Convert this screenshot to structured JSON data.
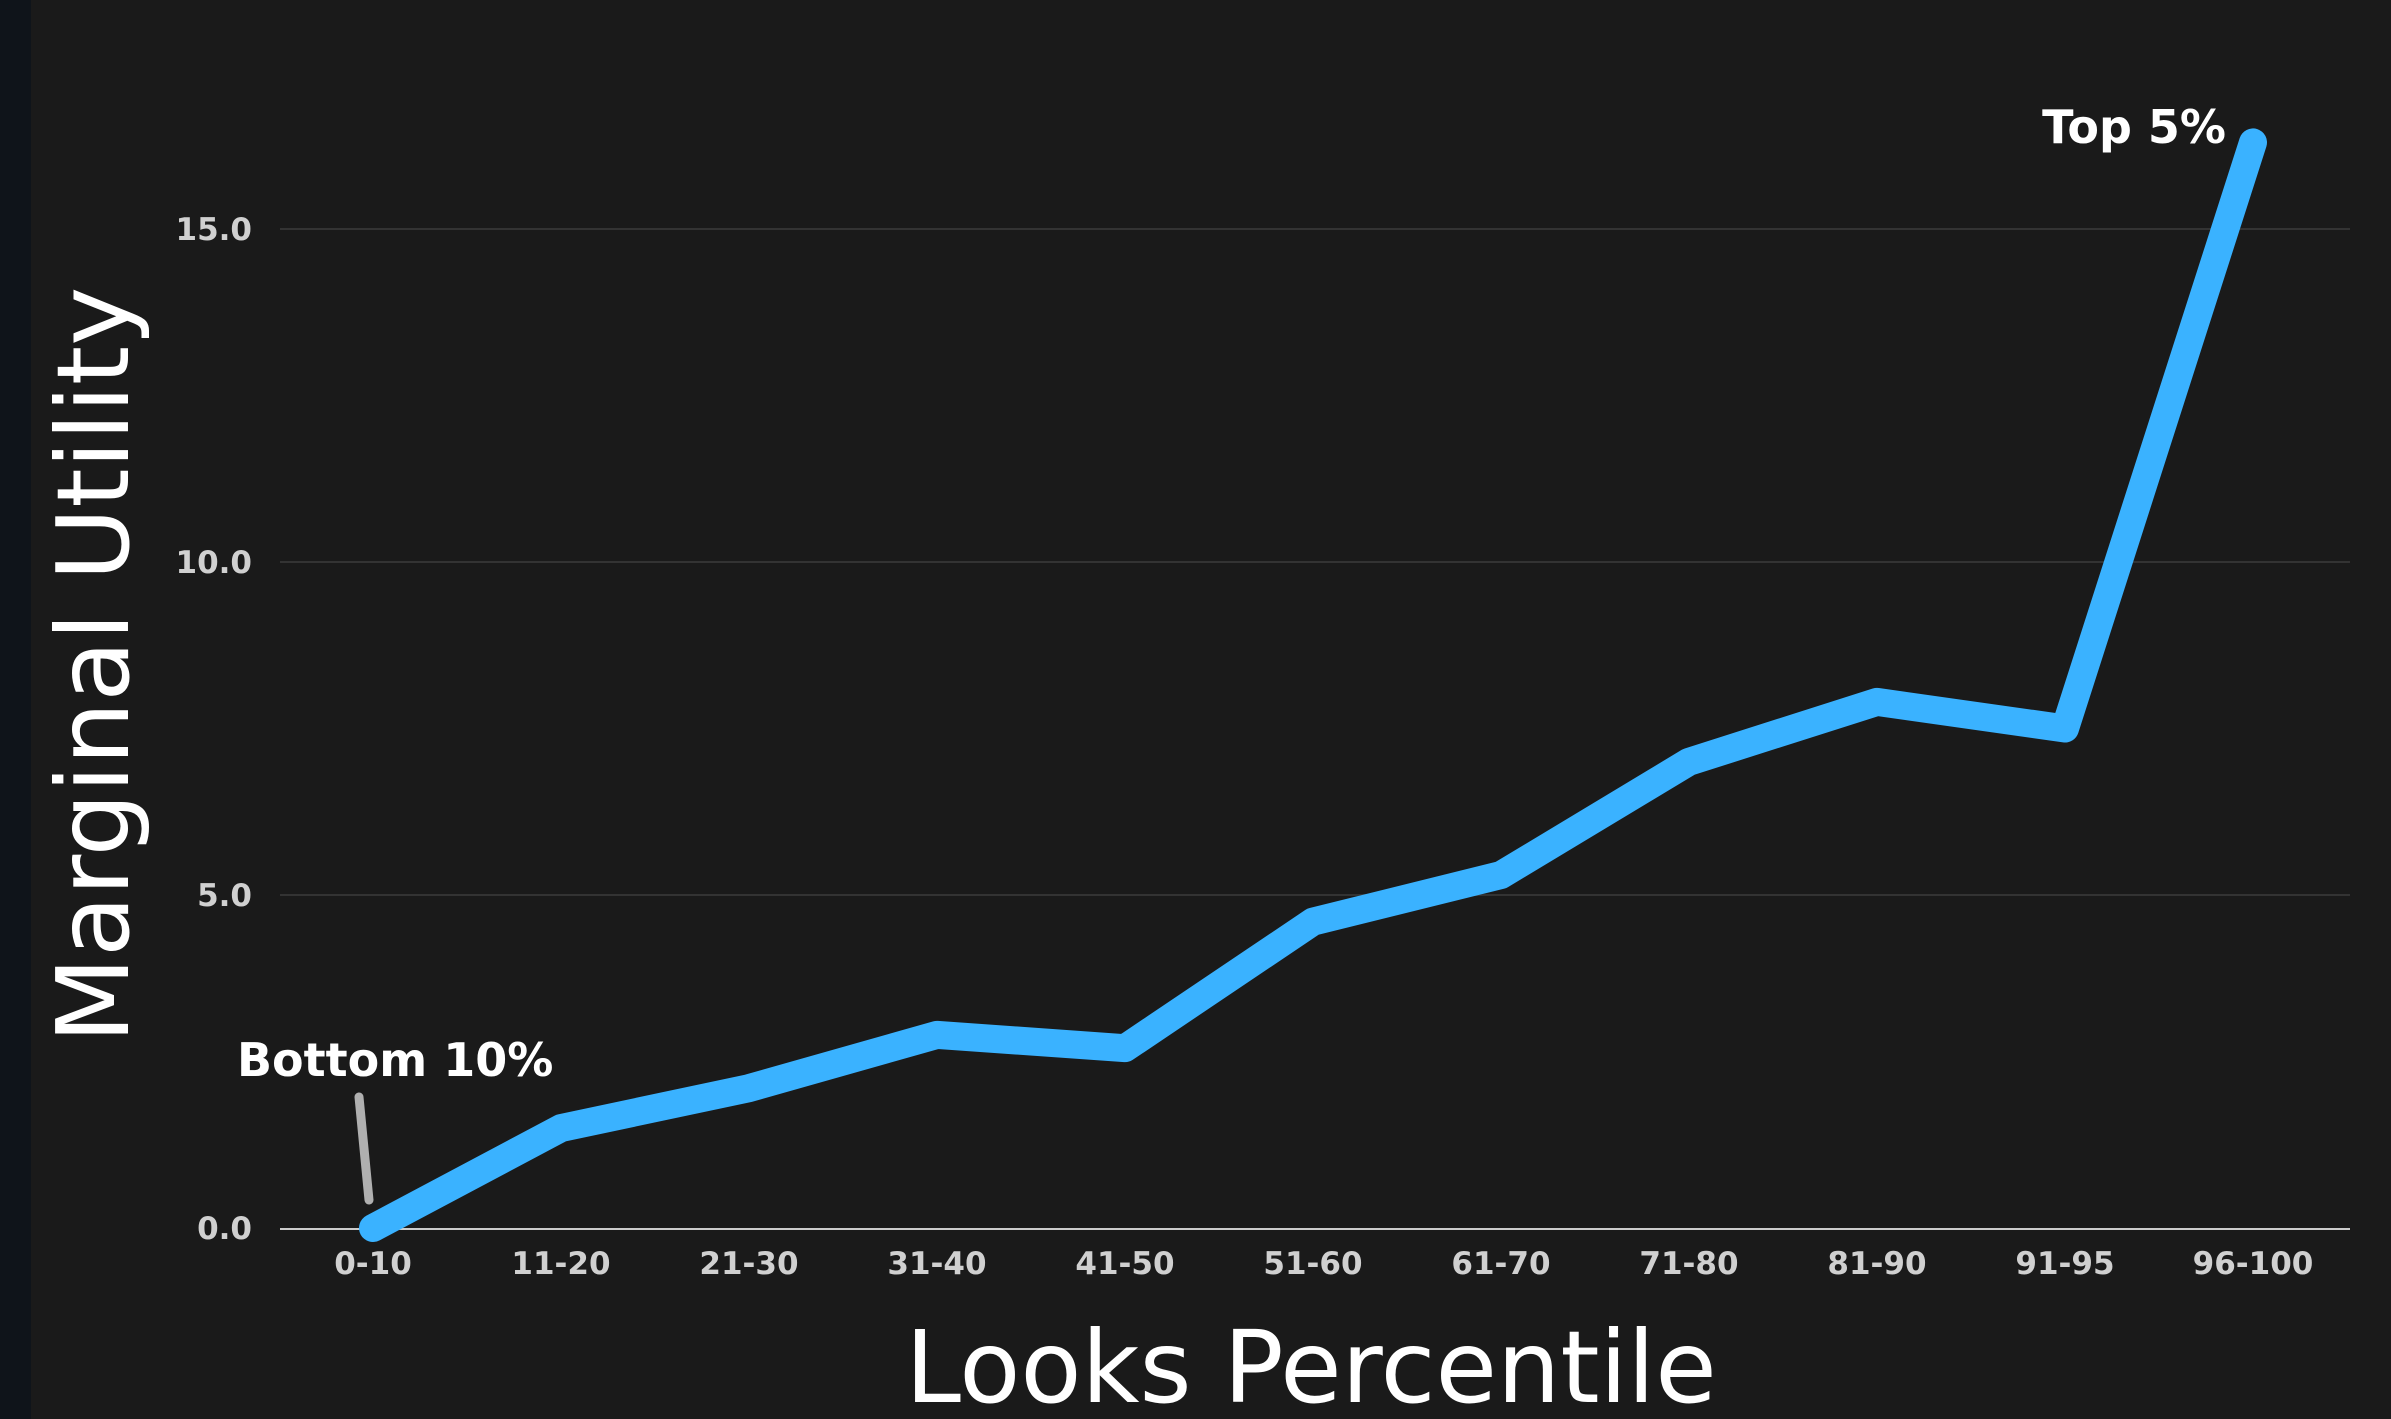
{
  "chart_data": {
    "type": "line",
    "title": "",
    "xlabel": "Looks Percentile",
    "ylabel": "Marginal Utility",
    "categories": [
      "0-10",
      "11-20",
      "21-30",
      "31-40",
      "41-50",
      "51-60",
      "61-70",
      "71-80",
      "81-90",
      "91-95",
      "96-100"
    ],
    "values": [
      0.0,
      1.5,
      2.1,
      2.9,
      2.7,
      4.6,
      5.3,
      7.0,
      7.9,
      7.5,
      16.3
    ],
    "yticks": [
      "0.0",
      "5.0",
      "10.0",
      "15.0"
    ],
    "ylim": [
      0,
      17
    ],
    "grid": "horizontal",
    "annotations": [
      {
        "text": "Bottom 10%",
        "category": "0-10"
      },
      {
        "text": "Top 5%",
        "category": "96-100"
      }
    ],
    "colors": {
      "line": "#3ab2ff",
      "background": "#1a1a1a",
      "grid": "#333333",
      "pointer": "#b0b0b0"
    }
  }
}
